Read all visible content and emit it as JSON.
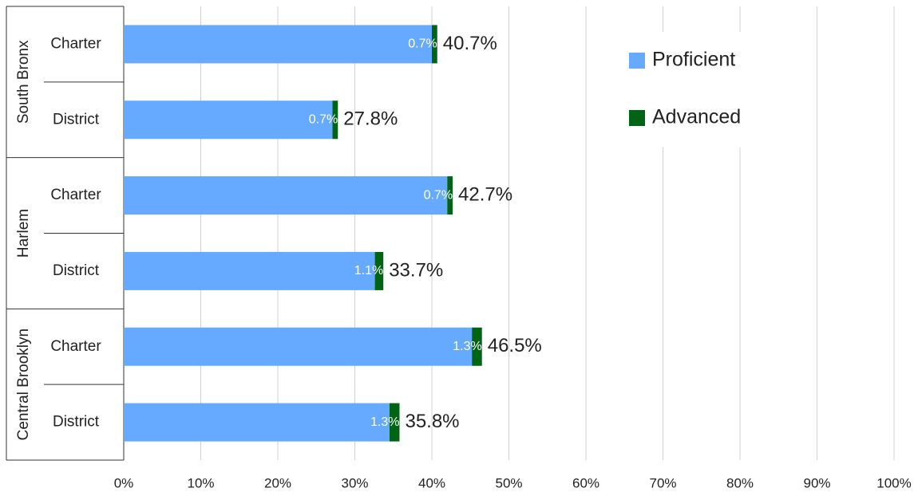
{
  "chart_data": {
    "type": "stacked-barh",
    "groups": [
      "South Bronx",
      "Harlem",
      "Central Brooklyn"
    ],
    "categories": [
      "Charter",
      "District",
      "Charter",
      "District",
      "Charter",
      "District"
    ],
    "series": [
      {
        "name": "Proficient",
        "color": "#66aaff",
        "values": [
          40.0,
          27.1,
          42.0,
          32.6,
          45.2,
          34.5
        ]
      },
      {
        "name": "Advanced",
        "color": "#006414",
        "values": [
          0.7,
          0.7,
          0.7,
          1.1,
          1.3,
          1.3
        ],
        "value_labels": [
          "0.7%",
          "0.7%",
          "0.7%",
          "1.1%",
          "1.3%",
          "1.3%"
        ]
      }
    ],
    "totals": [
      40.7,
      27.8,
      42.7,
      33.7,
      46.5,
      35.8
    ],
    "total_labels": [
      "40.7%",
      "27.8%",
      "42.7%",
      "33.7%",
      "46.5%",
      "35.8%"
    ],
    "xlim": [
      0,
      100
    ],
    "xticks": [
      {
        "value": 0,
        "label": "0%"
      },
      {
        "value": 10,
        "label": "10%"
      },
      {
        "value": 20,
        "label": "20%"
      },
      {
        "value": 30,
        "label": "30%"
      },
      {
        "value": 40,
        "label": "40%"
      },
      {
        "value": 50,
        "label": "50%"
      },
      {
        "value": 60,
        "label": "60%"
      },
      {
        "value": 70,
        "label": "70%"
      },
      {
        "value": 80,
        "label": "80%"
      },
      {
        "value": 90,
        "label": "90%"
      },
      {
        "value": 100,
        "label": "100%"
      }
    ],
    "grid": true,
    "legend": "top-right"
  }
}
